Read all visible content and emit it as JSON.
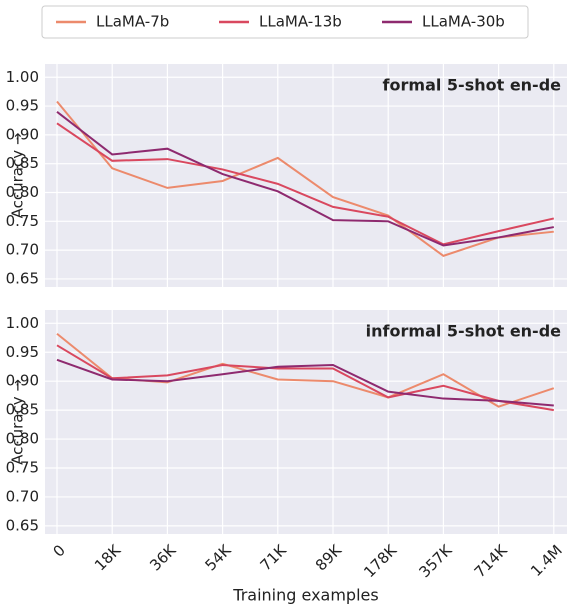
{
  "chart_data": [
    {
      "type": "line",
      "title": "formal 5-shot en-de",
      "ylabel": "Accuracy →",
      "ylim": [
        0.636,
        1.023
      ],
      "yticks": [
        0.65,
        {
          "value": 0.7,
          "label": "0.70"
        },
        0.75,
        {
          "value": 0.8,
          "label": "0.80"
        },
        0.85,
        {
          "value": 0.9,
          "label": "0.90"
        },
        0.95,
        {
          "value": 1.0,
          "label": "1.00"
        }
      ],
      "grid": true,
      "series": [
        {
          "name": "LLaMA-7b",
          "color": "#ec8a6c",
          "values": [
            0.958,
            0.842,
            0.808,
            0.82,
            0.86,
            0.792,
            0.76,
            0.69,
            0.722,
            0.732
          ]
        },
        {
          "name": "LLaMA-13b",
          "color": "#d9485f",
          "values": [
            0.92,
            0.855,
            0.858,
            0.84,
            0.815,
            0.775,
            0.758,
            0.71,
            0.733,
            0.755
          ]
        },
        {
          "name": "LLaMA-30b",
          "color": "#8e2a6f",
          "values": [
            0.94,
            0.866,
            0.876,
            0.832,
            0.802,
            0.752,
            0.75,
            0.708,
            0.722,
            0.74
          ]
        }
      ]
    },
    {
      "type": "line",
      "title": "informal 5-shot en-de",
      "ylabel": "Accuracy →",
      "xlabel": "Training examples",
      "categories": [
        "0",
        "18K",
        "36K",
        "54K",
        "71K",
        "89K",
        "178K",
        "357K",
        "714K",
        "1.4M"
      ],
      "ylim": [
        0.636,
        1.023
      ],
      "yticks": [
        0.65,
        {
          "value": 0.7,
          "label": "0.70"
        },
        0.75,
        {
          "value": 0.8,
          "label": "0.80"
        },
        0.85,
        {
          "value": 0.9,
          "label": "0.90"
        },
        0.95,
        {
          "value": 1.0,
          "label": "1.00"
        }
      ],
      "grid": true,
      "series": [
        {
          "color": "#ec8a6c",
          "values": [
            0.982,
            0.905,
            0.898,
            0.93,
            0.903,
            0.9,
            0.872,
            0.912,
            0.856,
            0.888
          ]
        },
        {
          "color": "#d9485f",
          "values": [
            0.962,
            0.905,
            0.91,
            0.928,
            0.922,
            0.922,
            0.872,
            0.892,
            0.866,
            0.85
          ]
        },
        {
          "color": "#8e2a6f",
          "values": [
            0.937,
            0.903,
            0.9,
            0.912,
            0.925,
            0.928,
            0.882,
            0.87,
            0.866,
            0.858
          ]
        }
      ]
    }
  ]
}
